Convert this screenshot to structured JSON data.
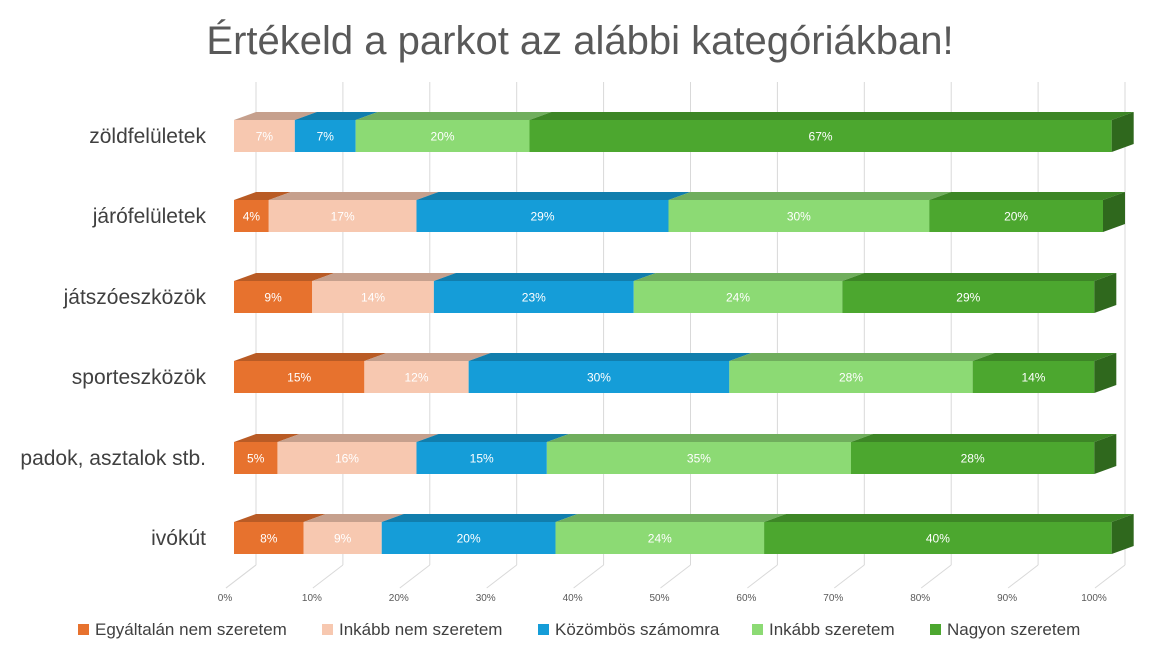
{
  "chart_data": {
    "type": "bar",
    "orientation": "horizontal",
    "stacked": "percent",
    "title": "Értékeld a parkot az alábbi kategóriákban!",
    "categories": [
      "zöldfelületek",
      "járófelületek",
      "játszóeszközök",
      "sporteszközök",
      "padok, asztalok stb.",
      "ivókút"
    ],
    "series": [
      {
        "name": "Egyáltalán nem szeretem",
        "color": "#E7722E",
        "values": [
          0,
          4,
          9,
          15,
          5,
          8
        ],
        "labels": [
          "",
          "4%",
          "9%",
          "15%",
          "5%",
          "8%"
        ]
      },
      {
        "name": "Inkább nem szeretem",
        "color": "#F7C8B0",
        "values": [
          7,
          17,
          14,
          12,
          16,
          9
        ],
        "labels": [
          "7%",
          "17%",
          "14%",
          "12%",
          "16%",
          "9%"
        ]
      },
      {
        "name": "Közömbös számomra",
        "color": "#159DD8",
        "values": [
          7,
          29,
          23,
          30,
          15,
          20
        ],
        "labels": [
          "7%",
          "29%",
          "23%",
          "30%",
          "15%",
          "20%"
        ]
      },
      {
        "name": "Inkább szeretem",
        "color": "#8CDA74",
        "values": [
          20,
          30,
          24,
          28,
          35,
          24
        ],
        "labels": [
          "20%",
          "30%",
          "24%",
          "28%",
          "35%",
          "24%"
        ]
      },
      {
        "name": "Nagyon szeretem",
        "color": "#4CA72F",
        "values": [
          67,
          20,
          29,
          14,
          28,
          40
        ],
        "labels": [
          "67%",
          "20%",
          "29%",
          "14%",
          "28%",
          "40%"
        ]
      }
    ],
    "xaxis": {
      "ticks": [
        "0%",
        "10%",
        "20%",
        "30%",
        "40%",
        "50%",
        "60%",
        "70%",
        "80%",
        "90%",
        "100%"
      ],
      "range": [
        0,
        100
      ]
    },
    "grid": true,
    "legend_position": "bottom"
  }
}
